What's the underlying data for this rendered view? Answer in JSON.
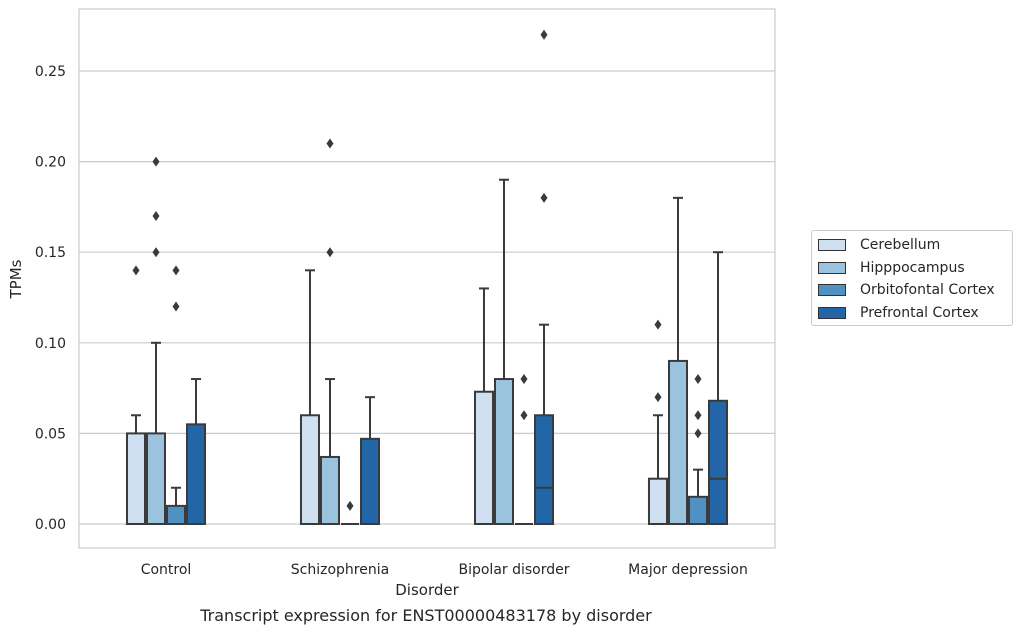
{
  "chart_data": {
    "type": "boxplot",
    "title": "Transcript expression for ENST00000483178 by disorder",
    "xlabel": "Disorder",
    "ylabel": "TPMs",
    "ylim": [
      -0.013,
      0.284
    ],
    "yticks": [
      "0.00",
      "0.05",
      "0.10",
      "0.15",
      "0.20",
      "0.25"
    ],
    "ytick_values": [
      0.0,
      0.05,
      0.1,
      0.15,
      0.2,
      0.25
    ],
    "grid": "horizontal",
    "legend_position": "right",
    "categories": [
      "Control",
      "Schizophrenia",
      "Bipolar disorder",
      "Major depression"
    ],
    "series": [
      {
        "name": "Cerebellum",
        "color": "#d0e0f0",
        "boxes": [
          {
            "q1": 0.0,
            "median": 0.0,
            "q3": 0.05,
            "whisker_low": 0.0,
            "whisker_high": 0.06,
            "outliers": [
              0.14
            ]
          },
          {
            "q1": 0.0,
            "median": 0.0,
            "q3": 0.06,
            "whisker_low": 0.0,
            "whisker_high": 0.14,
            "outliers": []
          },
          {
            "q1": 0.0,
            "median": 0.0,
            "q3": 0.073,
            "whisker_low": 0.0,
            "whisker_high": 0.13,
            "outliers": []
          },
          {
            "q1": 0.0,
            "median": 0.0,
            "q3": 0.025,
            "whisker_low": 0.0,
            "whisker_high": 0.06,
            "outliers": [
              0.07,
              0.11
            ]
          }
        ]
      },
      {
        "name": "Hipppocampus",
        "color": "#9cc3dd",
        "boxes": [
          {
            "q1": 0.0,
            "median": 0.0,
            "q3": 0.05,
            "whisker_low": 0.0,
            "whisker_high": 0.1,
            "outliers": [
              0.15,
              0.17,
              0.2
            ]
          },
          {
            "q1": 0.0,
            "median": 0.0,
            "q3": 0.037,
            "whisker_low": 0.0,
            "whisker_high": 0.08,
            "outliers": [
              0.15,
              0.21
            ]
          },
          {
            "q1": 0.0,
            "median": 0.0,
            "q3": 0.08,
            "whisker_low": 0.0,
            "whisker_high": 0.19,
            "outliers": []
          },
          {
            "q1": 0.0,
            "median": 0.0,
            "q3": 0.09,
            "whisker_low": 0.0,
            "whisker_high": 0.18,
            "outliers": []
          }
        ]
      },
      {
        "name": "Orbitofontal Cortex",
        "color": "#4f91c3",
        "boxes": [
          {
            "q1": 0.0,
            "median": 0.0,
            "q3": 0.01,
            "whisker_low": 0.0,
            "whisker_high": 0.02,
            "outliers": [
              0.12,
              0.14
            ]
          },
          {
            "q1": 0.0,
            "median": 0.0,
            "q3": 0.0,
            "whisker_low": 0.0,
            "whisker_high": 0.0,
            "outliers": [
              0.01
            ]
          },
          {
            "q1": 0.0,
            "median": 0.0,
            "q3": 0.0,
            "whisker_low": 0.0,
            "whisker_high": 0.0,
            "outliers": [
              0.06,
              0.08
            ]
          },
          {
            "q1": 0.0,
            "median": 0.0,
            "q3": 0.015,
            "whisker_low": 0.0,
            "whisker_high": 0.03,
            "outliers": [
              0.05,
              0.06,
              0.08
            ]
          }
        ]
      },
      {
        "name": "Prefrontal Cortex",
        "color": "#2366a8",
        "boxes": [
          {
            "q1": 0.0,
            "median": 0.0,
            "q3": 0.055,
            "whisker_low": 0.0,
            "whisker_high": 0.08,
            "outliers": []
          },
          {
            "q1": 0.0,
            "median": 0.0,
            "q3": 0.047,
            "whisker_low": 0.0,
            "whisker_high": 0.07,
            "outliers": []
          },
          {
            "q1": 0.0,
            "median": 0.02,
            "q3": 0.06,
            "whisker_low": 0.0,
            "whisker_high": 0.11,
            "outliers": [
              0.18,
              0.27
            ]
          },
          {
            "q1": 0.0,
            "median": 0.025,
            "q3": 0.068,
            "whisker_low": 0.0,
            "whisker_high": 0.15,
            "outliers": []
          }
        ]
      }
    ]
  }
}
